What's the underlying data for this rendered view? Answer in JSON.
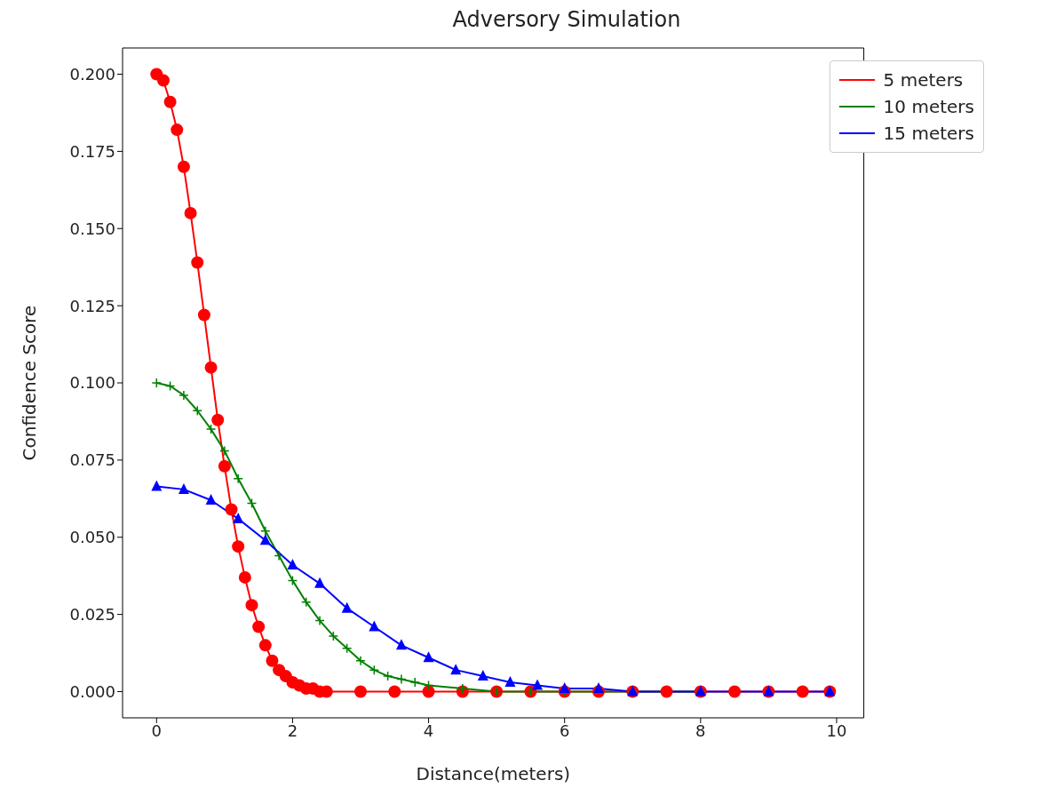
{
  "chart_data": {
    "type": "line",
    "title": "Adversory Simulation",
    "xlabel": "Distance(meters)",
    "ylabel": "Confidence Score",
    "xlim": [
      -0.5,
      10.4
    ],
    "xticks": [
      0,
      2,
      4,
      6,
      8,
      10
    ],
    "ylim": [
      -0.0085,
      0.2085
    ],
    "yticks": [
      {
        "value": 0,
        "label": "0.000"
      },
      {
        "value": 0.025,
        "label": "0.025"
      },
      {
        "value": 0.05,
        "label": "0.050"
      },
      {
        "value": 0.075,
        "label": "0.075"
      },
      {
        "value": 0.1,
        "label": "0.100"
      },
      {
        "value": 0.125,
        "label": "0.125"
      },
      {
        "value": 0.15,
        "label": "0.150"
      },
      {
        "value": 0.175,
        "label": "0.175"
      },
      {
        "value": 0.2,
        "label": "0.200"
      }
    ],
    "grid": false,
    "legend": "top right",
    "line_style": "solid",
    "series": [
      {
        "name": "5 meters",
        "color": "#ff0000",
        "marker": "circle",
        "x": [
          0,
          0.1,
          0.2,
          0.3,
          0.4,
          0.5,
          0.6,
          0.7,
          0.8,
          0.9,
          1.0,
          1.1,
          1.2,
          1.3,
          1.4,
          1.5,
          1.6,
          1.7,
          1.8,
          1.9,
          2.0,
          2.1,
          2.2,
          2.3,
          2.4,
          2.5,
          3,
          3.5,
          4,
          4.5,
          5,
          5.5,
          6,
          6.5,
          7,
          7.5,
          8,
          8.5,
          9,
          9.5,
          9.9
        ],
        "values": [
          0.2,
          0.198,
          0.191,
          0.182,
          0.17,
          0.155,
          0.139,
          0.122,
          0.105,
          0.088,
          0.073,
          0.059,
          0.047,
          0.037,
          0.028,
          0.021,
          0.015,
          0.01,
          0.007,
          0.005,
          0.003,
          0.002,
          0.001,
          0.001,
          0,
          0,
          0,
          0,
          0,
          0,
          0,
          0,
          0,
          0,
          0,
          0,
          0,
          0,
          0,
          0,
          0
        ]
      },
      {
        "name": "10 meters",
        "color": "#008000",
        "marker": "cross",
        "x": [
          0,
          0.2,
          0.4,
          0.6,
          0.8,
          1.0,
          1.2,
          1.4,
          1.6,
          1.8,
          2.0,
          2.2,
          2.4,
          2.6,
          2.8,
          3.0,
          3.2,
          3.4,
          3.6,
          3.8,
          4.0,
          4.5,
          5,
          5.5,
          6,
          7,
          8
        ],
        "values": [
          0.1,
          0.099,
          0.096,
          0.091,
          0.085,
          0.078,
          0.069,
          0.061,
          0.052,
          0.044,
          0.036,
          0.029,
          0.023,
          0.018,
          0.014,
          0.01,
          0.007,
          0.005,
          0.004,
          0.003,
          0.002,
          0.001,
          0,
          0,
          0,
          0,
          0
        ]
      },
      {
        "name": "15 meters",
        "color": "#0000ff",
        "marker": "triangle",
        "x": [
          0,
          0.4,
          0.8,
          1.2,
          1.6,
          2.0,
          2.4,
          2.8,
          3.2,
          3.6,
          4.0,
          4.4,
          4.8,
          5.2,
          5.6,
          6.0,
          6.5,
          7,
          8,
          9,
          9.9
        ],
        "values": [
          0.0665,
          0.0655,
          0.062,
          0.056,
          0.049,
          0.041,
          0.035,
          0.027,
          0.021,
          0.015,
          0.011,
          0.007,
          0.005,
          0.003,
          0.002,
          0.001,
          0.001,
          0,
          0,
          0,
          0
        ]
      }
    ]
  }
}
